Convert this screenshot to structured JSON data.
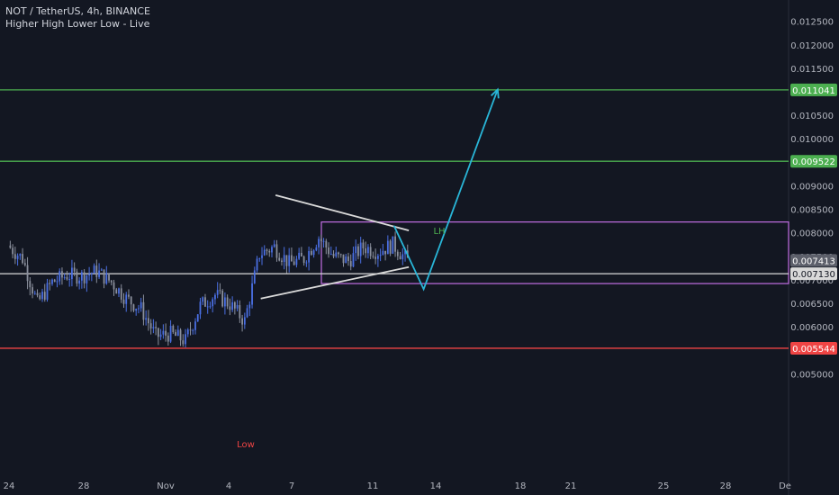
{
  "header": {
    "symbol_line": "NOT / TetherUS, 4h, BINANCE",
    "indicator_line": "Higher High Lower Low - Live"
  },
  "colors": {
    "background": "#131722",
    "candle_up": "#4a6fe3",
    "candle_down": "#8a8f9c",
    "green_level": "#4caf50",
    "red_level": "#ef4444",
    "white_line": "#d9d9d9",
    "rectangle": "#c16ee3",
    "projection": "#29b6d8",
    "axis_text": "#b2b5be"
  },
  "chart_data": {
    "type": "candlestick",
    "symbol": "NOT / TetherUS",
    "interval": "4h",
    "exchange": "BINANCE",
    "x_tick_labels": [
      "24",
      "28",
      "Nov",
      "4",
      "7",
      "11",
      "14",
      "18",
      "21",
      "25",
      "28",
      "De"
    ],
    "y_tick_labels": [
      "0.005000",
      "0.005500",
      "0.006000",
      "0.006500",
      "0.007000",
      "0.007500",
      "0.008000",
      "0.008500",
      "0.009000",
      "0.009500",
      "0.010000",
      "0.010500",
      "0.011000",
      "0.011500",
      "0.012000",
      "0.012500"
    ],
    "ylim": [
      0.0049,
      0.0128
    ],
    "horizontal_levels": [
      {
        "value": 0.011041,
        "label": "0.011041",
        "color": "#4caf50"
      },
      {
        "value": 0.009522,
        "label": "0.009522",
        "color": "#4caf50"
      },
      {
        "value": 0.00713,
        "label": "0.007130",
        "color": "#d9d9d9"
      },
      {
        "value": 0.005544,
        "label": "0.005544",
        "color": "#ef4444"
      }
    ],
    "last_price": {
      "value": 0.007413,
      "label": "0.007413"
    },
    "annotations": [
      {
        "text": "LH",
        "color": "#4caf50"
      },
      {
        "text": "Low",
        "color": "#ef4444"
      }
    ],
    "consolidation_range": {
      "date_from": "Nov 9",
      "date_to": "Nov 26",
      "low": 0.00692,
      "high": 0.00823
    },
    "trendlines": [
      {
        "name": "descending resistance",
        "from": {
          "date": "Nov 11",
          "price": 0.0088
        },
        "to": {
          "date": "Nov 20",
          "price": 0.00805
        }
      },
      {
        "name": "ascending support",
        "from": {
          "date": "Nov 10",
          "price": 0.0066
        },
        "to": {
          "date": "Nov 20",
          "price": 0.00727
        }
      }
    ],
    "projection_path": [
      {
        "date": "Nov 19",
        "price": 0.00815
      },
      {
        "date": "Nov 21",
        "price": 0.0068
      },
      {
        "date": "Nov 26",
        "price": 0.01105
      }
    ],
    "price_series": [
      {
        "date": "Oct 24",
        "price": 0.00773
      },
      {
        "date": "Oct 25",
        "price": 0.00745
      },
      {
        "date": "Oct 26",
        "price": 0.0065
      },
      {
        "date": "Oct 27",
        "price": 0.00695
      },
      {
        "date": "Oct 28",
        "price": 0.0071
      },
      {
        "date": "Oct 29",
        "price": 0.00708
      },
      {
        "date": "Oct 30",
        "price": 0.00718
      },
      {
        "date": "Oct 31",
        "price": 0.00695
      },
      {
        "date": "Nov 1",
        "price": 0.0066
      },
      {
        "date": "Nov 2",
        "price": 0.00638
      },
      {
        "date": "Nov 3",
        "price": 0.0058
      },
      {
        "date": "Nov 4",
        "price": 0.00585
      },
      {
        "date": "Nov 5",
        "price": 0.0057
      },
      {
        "date": "Nov 6",
        "price": 0.00645
      },
      {
        "date": "Nov 7",
        "price": 0.00668
      },
      {
        "date": "Nov 8",
        "price": 0.00648
      },
      {
        "date": "Nov 9",
        "price": 0.00612
      },
      {
        "date": "Nov 10",
        "price": 0.00755
      },
      {
        "date": "Nov 11",
        "price": 0.0077
      },
      {
        "date": "Nov 12",
        "price": 0.00735
      },
      {
        "date": "Nov 13",
        "price": 0.00745
      },
      {
        "date": "Nov 14",
        "price": 0.0079
      },
      {
        "date": "Nov 15",
        "price": 0.0075
      },
      {
        "date": "Nov 16",
        "price": 0.0074
      },
      {
        "date": "Nov 17",
        "price": 0.0077
      },
      {
        "date": "Nov 18",
        "price": 0.0076
      },
      {
        "date": "Nov 19",
        "price": 0.00775
      },
      {
        "date": "Nov 20",
        "price": 0.00741
      }
    ]
  }
}
